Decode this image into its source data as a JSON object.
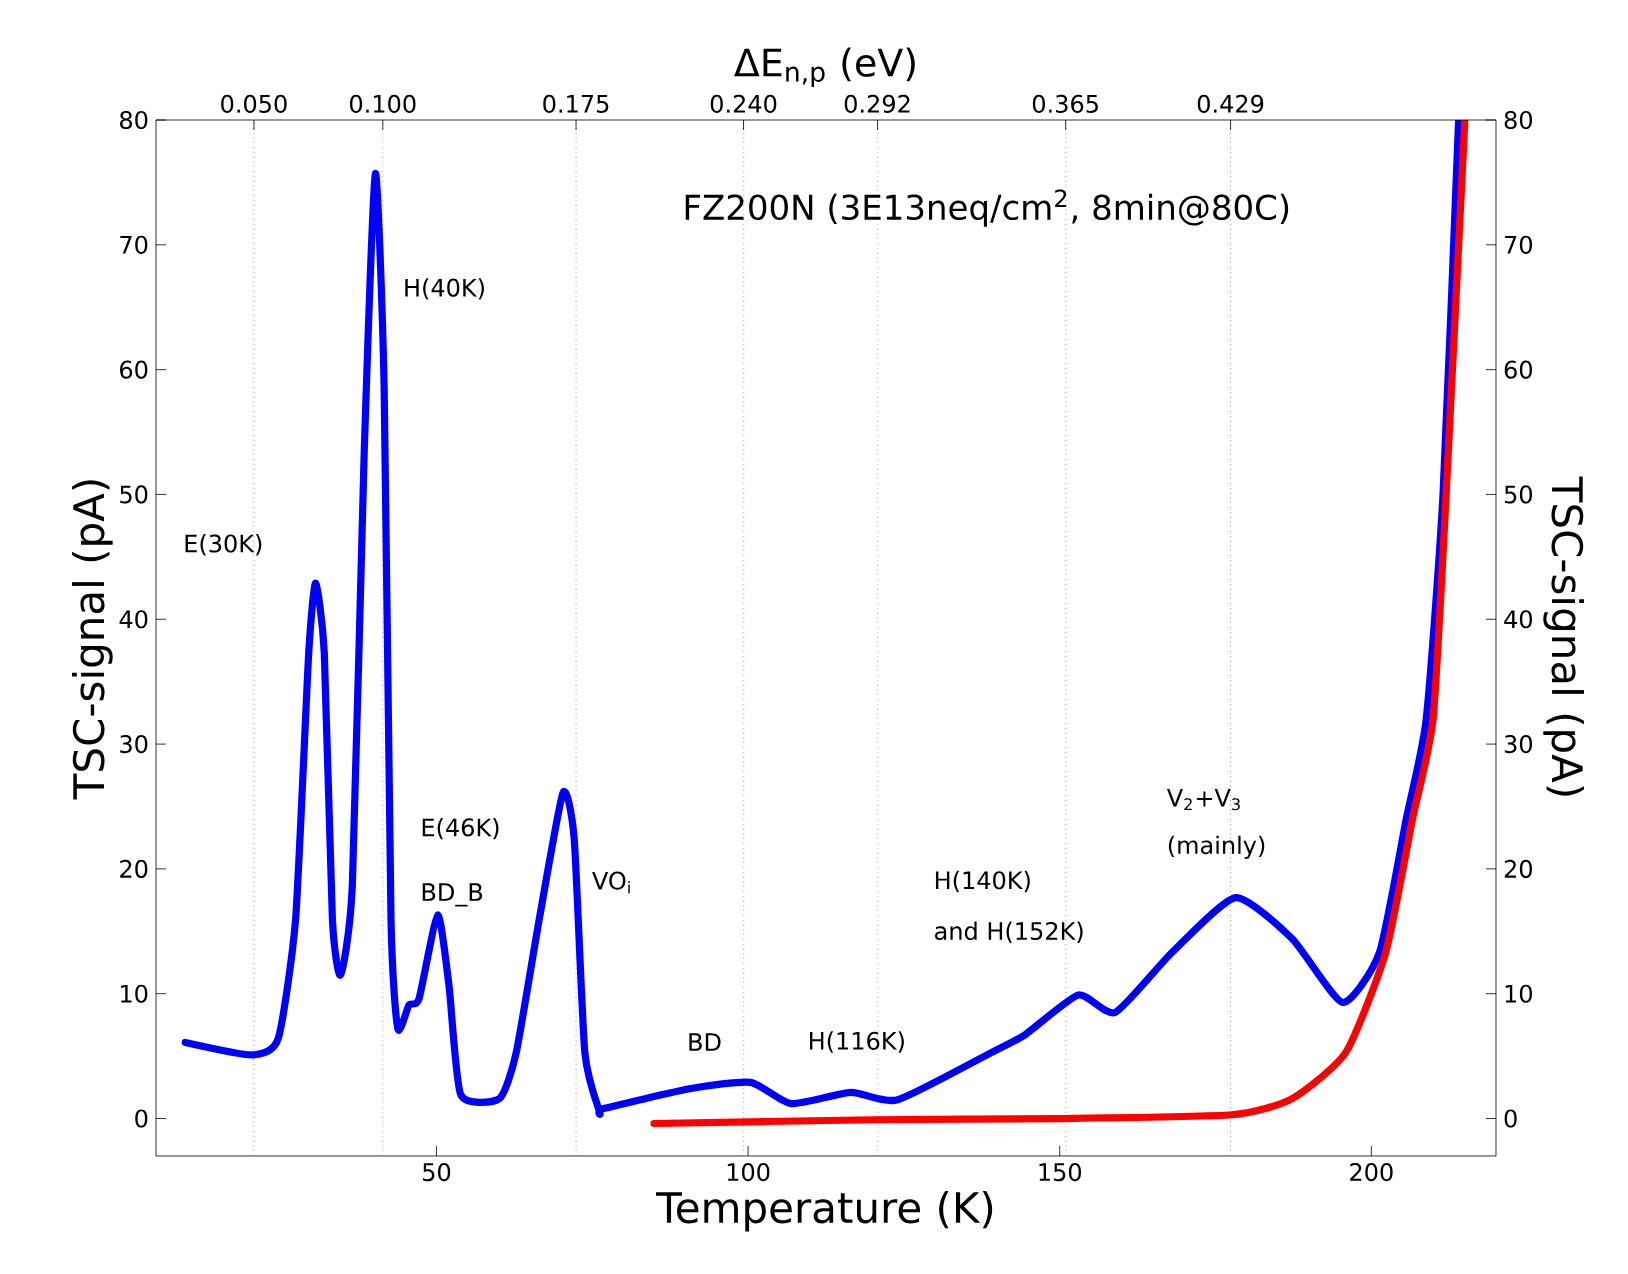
{
  "chart_data": {
    "type": "line",
    "xlabel": "Temperature (K)",
    "ylabel": "TSC-signal (pA)",
    "y2label": "TSC-signal (pA)",
    "x2label": "ΔE$_{n,p}$ (eV)",
    "xlim": [
      5,
      220
    ],
    "xticks": [
      50,
      100,
      150,
      200
    ],
    "ylim": [
      -3,
      80
    ],
    "yticks": [
      0,
      10,
      20,
      30,
      40,
      50,
      60,
      70,
      80
    ],
    "y2lim": [
      -3,
      80
    ],
    "y2ticks": [
      0,
      10,
      20,
      30,
      40,
      50,
      60,
      70,
      80
    ],
    "x2lim": [
      0.012,
      0.532
    ],
    "x2ticks": [
      {
        "value": 0.05,
        "label": "0.050"
      },
      {
        "value": 0.1,
        "label": "0.100"
      },
      {
        "value": 0.175,
        "label": "0.175"
      },
      {
        "value": 0.24,
        "label": "0.240"
      },
      {
        "value": 0.292,
        "label": "0.292"
      },
      {
        "value": 0.365,
        "label": "0.365"
      },
      {
        "value": 0.429,
        "label": "0.429"
      }
    ],
    "series": [
      {
        "color": "#0000ff",
        "x": [
          9.7,
          20.4,
          24.6,
          27.4,
          29.5,
          30.6,
          32.0,
          33.3,
          34.6,
          36.5,
          38.4,
          40.2,
          41.6,
          42.7,
          43.8,
          45.6,
          47.2,
          50.2,
          52.0,
          53.9,
          60.1,
          62.8,
          66.5,
          70.3,
          72.1,
          73.8,
          76.2,
          76.8,
          90.8,
          100.4,
          106.9,
          116.5,
          124.0,
          139.1,
          144.4,
          153.0,
          158.9,
          168.0,
          178.2,
          187.3,
          195.4,
          201.3,
          205.6,
          208.8,
          211.5,
          214
        ],
        "values": [
          6.1,
          5.1,
          6.4,
          16,
          37.3,
          42.9,
          37.3,
          16,
          11.5,
          18.7,
          53.3,
          75.7,
          58.7,
          16,
          7.2,
          9.1,
          9.6,
          16.3,
          10.7,
          1.9,
          1.6,
          5.3,
          16,
          26.1,
          22.4,
          5.3,
          0.5,
          0.8,
          2.4,
          2.9,
          1.2,
          2.1,
          1.5,
          5.3,
          6.7,
          9.9,
          8.5,
          13.3,
          17.7,
          14.4,
          9.3,
          13.3,
          24,
          32,
          50,
          80
        ]
      },
      {
        "color": "#ff0000",
        "x": [
          84.9,
          120,
          150,
          177.6,
          187.3,
          195.9,
          202.3,
          206.6,
          209.9,
          212,
          215
        ],
        "values": [
          -0.4,
          -0.1,
          0,
          0.3,
          1.6,
          5.3,
          13.3,
          24,
          32,
          50,
          80
        ]
      }
    ],
    "ref_lines": [
      {
        "axis": "x",
        "value": 20.7,
        "color": "#555555",
        "line_style": "dotted"
      },
      {
        "axis": "x",
        "value": 41.4,
        "color": "#555555",
        "line_style": "dotted"
      },
      {
        "axis": "x",
        "value": 72.4,
        "color": "#555555",
        "line_style": "dotted"
      },
      {
        "axis": "x",
        "value": 99.3,
        "color": "#555555",
        "line_style": "dotted"
      },
      {
        "axis": "x",
        "value": 120.8,
        "color": "#555555",
        "line_style": "dotted"
      },
      {
        "axis": "x",
        "value": 151,
        "color": "#555555",
        "line_style": "dotted"
      },
      {
        "axis": "x",
        "value": 177.4,
        "color": "#555555",
        "line_style": "dotted"
      }
    ],
    "annotations": [
      "FZ200N (3E13neq/cm$^{2}$, 8min@80C)",
      "E(30K)",
      "H(40K)",
      "E(46K)",
      "BD_B",
      "VO$_{i}$",
      "BD",
      "H(116K)",
      "H(140K)",
      "and H(152K)",
      "V$_{2}$+V$_{3}$",
      "(mainly)"
    ]
  }
}
